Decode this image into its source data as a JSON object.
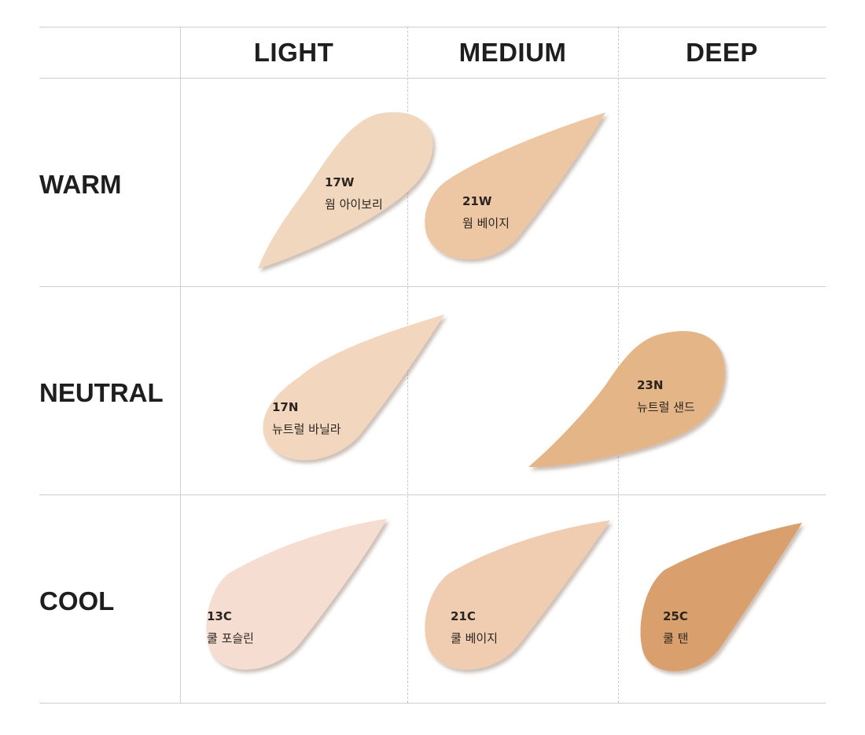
{
  "columns": [
    "LIGHT",
    "MEDIUM",
    "DEEP"
  ],
  "rows": [
    "WARM",
    "NEUTRAL",
    "COOL"
  ],
  "shades": [
    {
      "code": "17W",
      "name": "웜 아이보리",
      "tone": "WARM",
      "depth": "LIGHT",
      "color": "#f0d7be"
    },
    {
      "code": "21W",
      "name": "웜 베이지",
      "tone": "WARM",
      "depth": "MEDIUM",
      "color": "#edc6a4"
    },
    {
      "code": "17N",
      "name": "뉴트럴 바닐라",
      "tone": "NEUTRAL",
      "depth": "LIGHT",
      "color": "#f2d6bd"
    },
    {
      "code": "23N",
      "name": "뉴트럴 샌드",
      "tone": "NEUTRAL",
      "depth": "DEEP",
      "color": "#e4b586"
    },
    {
      "code": "13C",
      "name": "쿨 포슬린",
      "tone": "COOL",
      "depth": "LIGHT",
      "color": "#f5ddd1"
    },
    {
      "code": "21C",
      "name": "쿨 베이지",
      "tone": "COOL",
      "depth": "MEDIUM",
      "color": "#f0ccb1"
    },
    {
      "code": "25C",
      "name": "쿨 탠",
      "tone": "COOL",
      "depth": "DEEP",
      "color": "#d9a06d"
    }
  ]
}
